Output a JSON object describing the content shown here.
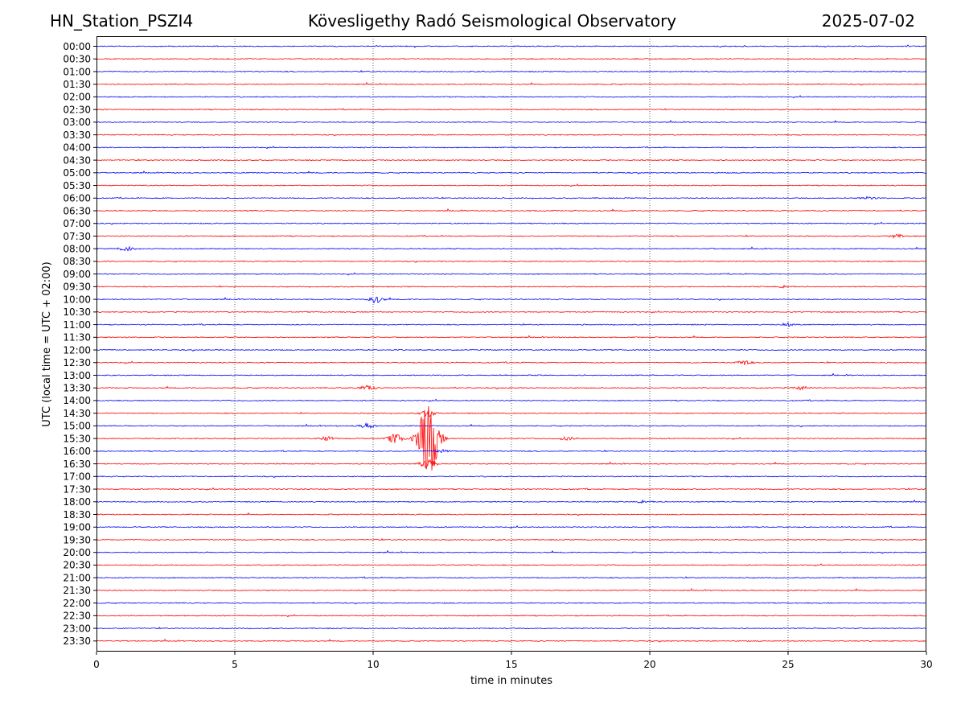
{
  "header": {
    "station": "HN_Station_PSZI4",
    "observatory": "Kövesligethy Radó Seismological Observatory",
    "date": "2025-07-02"
  },
  "chart_data": {
    "type": "line",
    "title": "Kövesligethy Radó Seismological Observatory",
    "xlabel": "time in minutes",
    "ylabel": "UTC (local time = UTC + 02:00)",
    "xlim": [
      0,
      30
    ],
    "x_ticks": [
      "0",
      "5",
      "10",
      "15",
      "20",
      "25",
      "30"
    ],
    "x_gridlines": [
      5,
      10,
      15,
      20,
      25
    ],
    "row_labels": [
      "00:00",
      "00:30",
      "01:00",
      "01:30",
      "02:00",
      "02:30",
      "03:00",
      "03:30",
      "04:00",
      "04:30",
      "05:00",
      "05:30",
      "06:00",
      "06:30",
      "07:00",
      "07:30",
      "08:00",
      "08:30",
      "09:00",
      "09:30",
      "10:00",
      "10:30",
      "11:00",
      "11:30",
      "12:00",
      "12:30",
      "13:00",
      "13:30",
      "14:00",
      "14:30",
      "15:00",
      "15:30",
      "16:00",
      "16:30",
      "17:00",
      "17:30",
      "18:00",
      "18:30",
      "19:00",
      "19:30",
      "20:00",
      "20:30",
      "21:00",
      "21:30",
      "22:00",
      "22:30",
      "23:00",
      "23:30"
    ],
    "colors": {
      "even_rows": "#0000ff",
      "odd_rows": "#ff0000",
      "grid": "#000000"
    },
    "events": [
      {
        "row": "15:30",
        "minute": 12.0,
        "amplitude": 9.5
      },
      {
        "row": "15:30",
        "minute": 10.8,
        "amplitude": 1.2
      },
      {
        "row": "15:30",
        "minute": 8.3,
        "amplitude": 0.5
      },
      {
        "row": "15:30",
        "minute": 17.0,
        "amplitude": 0.4
      },
      {
        "row": "15:00",
        "minute": 9.8,
        "amplitude": 0.6
      },
      {
        "row": "16:00",
        "minute": 12.5,
        "amplitude": 0.4
      },
      {
        "row": "14:30",
        "minute": 12.0,
        "amplitude": 0.8
      },
      {
        "row": "16:30",
        "minute": 12.0,
        "amplitude": 1.5
      },
      {
        "row": "10:00",
        "minute": 10.1,
        "amplitude": 0.8
      },
      {
        "row": "08:00",
        "minute": 1.1,
        "amplitude": 0.6
      },
      {
        "row": "12:30",
        "minute": 23.4,
        "amplitude": 0.6
      },
      {
        "row": "13:30",
        "minute": 9.8,
        "amplitude": 0.6
      },
      {
        "row": "11:00",
        "minute": 25.0,
        "amplitude": 0.35
      },
      {
        "row": "07:30",
        "minute": 28.9,
        "amplitude": 0.4
      },
      {
        "row": "06:00",
        "minute": 27.9,
        "amplitude": 0.3
      },
      {
        "row": "18:00",
        "minute": 19.8,
        "amplitude": 0.35
      },
      {
        "row": "13:30",
        "minute": 25.5,
        "amplitude": 0.4
      },
      {
        "row": "09:30",
        "minute": 24.9,
        "amplitude": 0.3
      }
    ]
  }
}
